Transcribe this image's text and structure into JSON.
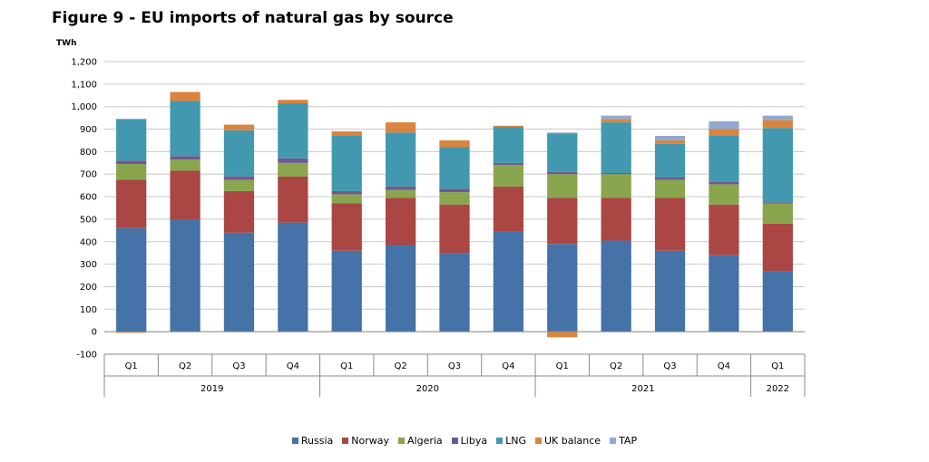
{
  "chart_data": {
    "type": "bar",
    "stacked": true,
    "title": "Figure 9 - EU imports of natural gas by source",
    "ylabel": "TWh",
    "xlabel": "",
    "ylim": [
      -100,
      1200
    ],
    "yticks": [
      -100,
      0,
      100,
      200,
      300,
      400,
      500,
      600,
      700,
      800,
      900,
      1000,
      1100,
      1200
    ],
    "ytick_labels": [
      "-100",
      "0",
      "100",
      "200",
      "300",
      "400",
      "500",
      "600",
      "700",
      "800",
      "900",
      "1,000",
      "1,100",
      "1,200"
    ],
    "grid": true,
    "legend_position": "bottom",
    "categories": [
      "Q1",
      "Q2",
      "Q3",
      "Q4",
      "Q1",
      "Q2",
      "Q3",
      "Q4",
      "Q1",
      "Q2",
      "Q3",
      "Q4",
      "Q1"
    ],
    "groups": [
      {
        "label": "2019",
        "count": 4
      },
      {
        "label": "2020",
        "count": 4
      },
      {
        "label": "2021",
        "count": 4
      },
      {
        "label": "2022",
        "count": 1
      }
    ],
    "series": [
      {
        "name": "Russia",
        "color": "#4572A7",
        "values": [
          460,
          500,
          440,
          485,
          360,
          385,
          350,
          445,
          390,
          405,
          360,
          340,
          270
        ]
      },
      {
        "name": "Norway",
        "color": "#AA4643",
        "values": [
          215,
          215,
          185,
          205,
          210,
          210,
          215,
          200,
          205,
          190,
          235,
          225,
          210
        ]
      },
      {
        "name": "Algeria",
        "color": "#89A54E",
        "values": [
          70,
          50,
          50,
          60,
          40,
          35,
          55,
          95,
          105,
          105,
          80,
          90,
          90
        ]
      },
      {
        "name": "Libya",
        "color": "#71588F",
        "values": [
          15,
          15,
          15,
          20,
          15,
          15,
          15,
          10,
          10,
          5,
          10,
          10,
          5
        ]
      },
      {
        "name": "LNG",
        "color": "#4198AF",
        "values": [
          185,
          245,
          205,
          245,
          245,
          240,
          185,
          160,
          170,
          225,
          150,
          205,
          330
        ]
      },
      {
        "name": "UK balance",
        "color": "#DB843D",
        "values": [
          -5,
          40,
          25,
          15,
          20,
          45,
          30,
          5,
          -25,
          15,
          15,
          30,
          35
        ]
      },
      {
        "name": "TAP",
        "color": "#93A9CF",
        "values": [
          0,
          0,
          0,
          0,
          0,
          0,
          0,
          0,
          5,
          15,
          20,
          35,
          20
        ]
      }
    ]
  }
}
